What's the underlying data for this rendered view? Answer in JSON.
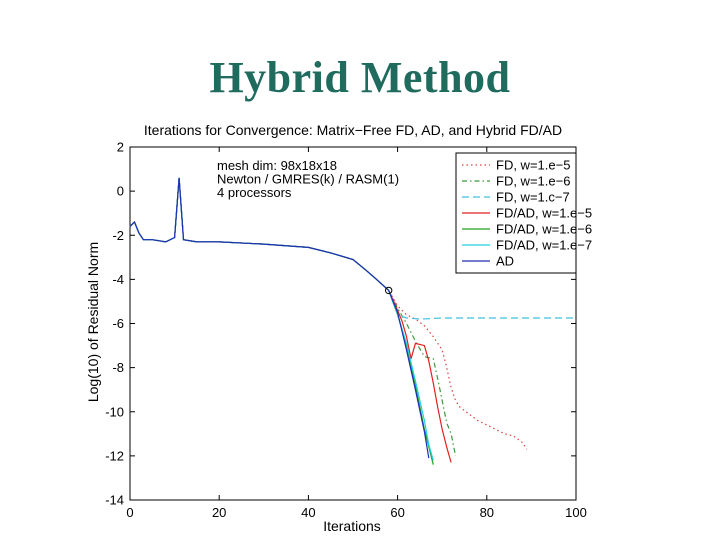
{
  "slide": {
    "title": "Hybrid Method"
  },
  "chart_data": {
    "type": "line",
    "title": "Iterations for Convergence: Matrix−Free FD, AD, and Hybrid FD/AD",
    "xlabel": "Iterations",
    "ylabel": "Log(10) of Residual Norm",
    "xlim": [
      0,
      100
    ],
    "ylim": [
      -14,
      2
    ],
    "xticks": [
      0,
      20,
      40,
      60,
      80,
      100
    ],
    "yticks": [
      2,
      0,
      -2,
      -4,
      -6,
      -8,
      -10,
      -12,
      -14
    ],
    "annotations": [
      "mesh dim: 98x18x18",
      "Newton / GMRES(k) / RASM(1)",
      "4 processors"
    ],
    "legend_position": "top-right",
    "series": [
      {
        "name": "FD, w=1.e−5",
        "color": "#e04040",
        "dash": "1.5,3",
        "x": [
          0,
          1,
          2,
          3,
          5,
          8,
          10,
          11,
          12,
          15,
          20,
          30,
          40,
          45,
          50,
          53,
          55,
          58,
          60,
          62,
          64,
          66,
          68,
          70,
          71,
          72,
          73,
          74,
          76,
          78,
          80,
          82,
          84,
          86,
          88,
          89
        ],
        "y": [
          -1.6,
          -1.4,
          -1.9,
          -2.2,
          -2.2,
          -2.3,
          -2.1,
          0.6,
          -2.2,
          -2.3,
          -2.3,
          -2.4,
          -2.55,
          -2.8,
          -3.1,
          -3.6,
          -3.95,
          -4.5,
          -5.2,
          -5.6,
          -5.8,
          -6.1,
          -6.6,
          -7.2,
          -8.0,
          -8.9,
          -9.5,
          -9.8,
          -10.1,
          -10.4,
          -10.6,
          -10.8,
          -11.0,
          -11.1,
          -11.4,
          -11.7
        ]
      },
      {
        "name": "FD, w=1.e−6",
        "color": "#3a9a3a",
        "dash": "5,3,1.5,3",
        "x": [
          0,
          1,
          2,
          3,
          5,
          8,
          10,
          11,
          12,
          15,
          20,
          30,
          40,
          45,
          50,
          53,
          55,
          58,
          60,
          62,
          64,
          66,
          68,
          69,
          70,
          71,
          72,
          73
        ],
        "y": [
          -1.6,
          -1.4,
          -1.9,
          -2.2,
          -2.2,
          -2.3,
          -2.1,
          0.6,
          -2.2,
          -2.3,
          -2.3,
          -2.4,
          -2.55,
          -2.8,
          -3.1,
          -3.6,
          -3.95,
          -4.5,
          -5.3,
          -6.0,
          -6.8,
          -7.5,
          -7.6,
          -8.5,
          -9.5,
          -10.5,
          -11.0,
          -12.0
        ]
      },
      {
        "name": "FD, w=1.c−7",
        "color": "#40c0e0",
        "dash": "7,4",
        "x": [
          0,
          1,
          2,
          3,
          5,
          8,
          10,
          11,
          12,
          15,
          20,
          30,
          40,
          45,
          50,
          53,
          55,
          58,
          60,
          62,
          65,
          70,
          80,
          90,
          100
        ],
        "y": [
          -1.6,
          -1.4,
          -1.9,
          -2.2,
          -2.2,
          -2.3,
          -2.1,
          0.6,
          -2.2,
          -2.3,
          -2.3,
          -2.4,
          -2.55,
          -2.8,
          -3.1,
          -3.6,
          -3.95,
          -4.5,
          -5.6,
          -5.75,
          -5.8,
          -5.75,
          -5.75,
          -5.75,
          -5.75
        ]
      },
      {
        "name": "FD/AD, w=1.e−5",
        "color": "#e02020",
        "dash": "",
        "x": [
          0,
          1,
          2,
          3,
          5,
          8,
          10,
          11,
          12,
          15,
          20,
          30,
          40,
          45,
          50,
          53,
          55,
          58,
          60,
          61,
          62,
          63,
          64,
          66,
          67,
          68,
          69,
          70,
          71,
          72
        ],
        "y": [
          -1.6,
          -1.4,
          -1.9,
          -2.2,
          -2.2,
          -2.3,
          -2.1,
          0.6,
          -2.2,
          -2.3,
          -2.3,
          -2.4,
          -2.55,
          -2.8,
          -3.1,
          -3.6,
          -3.95,
          -4.5,
          -5.4,
          -5.9,
          -6.6,
          -7.6,
          -6.9,
          -7.0,
          -7.7,
          -8.7,
          -9.8,
          -10.8,
          -11.6,
          -12.3
        ]
      },
      {
        "name": "FD/AD, w=1.e−6",
        "color": "#20a020",
        "dash": "",
        "x": [
          0,
          1,
          2,
          3,
          5,
          8,
          10,
          11,
          12,
          15,
          20,
          30,
          40,
          45,
          50,
          53,
          55,
          58,
          60,
          62,
          64,
          66,
          68
        ],
        "y": [
          -1.6,
          -1.4,
          -1.9,
          -2.2,
          -2.2,
          -2.3,
          -2.1,
          0.6,
          -2.2,
          -2.3,
          -2.3,
          -2.4,
          -2.55,
          -2.8,
          -3.1,
          -3.6,
          -3.95,
          -4.5,
          -5.6,
          -7.0,
          -8.8,
          -10.8,
          -12.4
        ]
      },
      {
        "name": "FD/AD, w=1.e−7",
        "color": "#20d0e0",
        "dash": "",
        "x": [
          0,
          1,
          2,
          3,
          5,
          8,
          10,
          11,
          12,
          15,
          20,
          30,
          40,
          45,
          50,
          53,
          55,
          58,
          60,
          62,
          64,
          66,
          67,
          68
        ],
        "y": [
          -1.6,
          -1.4,
          -1.9,
          -2.2,
          -2.2,
          -2.3,
          -2.1,
          0.6,
          -2.2,
          -2.3,
          -2.3,
          -2.4,
          -2.55,
          -2.8,
          -3.1,
          -3.6,
          -3.95,
          -4.5,
          -5.6,
          -6.9,
          -8.6,
          -10.4,
          -11.5,
          -12.2
        ]
      },
      {
        "name": "AD",
        "color": "#2030b0",
        "dash": "",
        "x": [
          0,
          1,
          2,
          3,
          5,
          8,
          10,
          11,
          12,
          15,
          20,
          30,
          40,
          45,
          50,
          53,
          55,
          58,
          60,
          62,
          64,
          66,
          67
        ],
        "y": [
          -1.6,
          -1.4,
          -1.9,
          -2.2,
          -2.2,
          -2.3,
          -2.1,
          0.6,
          -2.2,
          -2.3,
          -2.3,
          -2.4,
          -2.55,
          -2.8,
          -3.1,
          -3.6,
          -3.95,
          -4.5,
          -5.5,
          -7.2,
          -9.0,
          -10.9,
          -12.1
        ]
      }
    ],
    "markers": [
      {
        "x": 58,
        "y": -4.5,
        "shape": "circle"
      }
    ]
  }
}
